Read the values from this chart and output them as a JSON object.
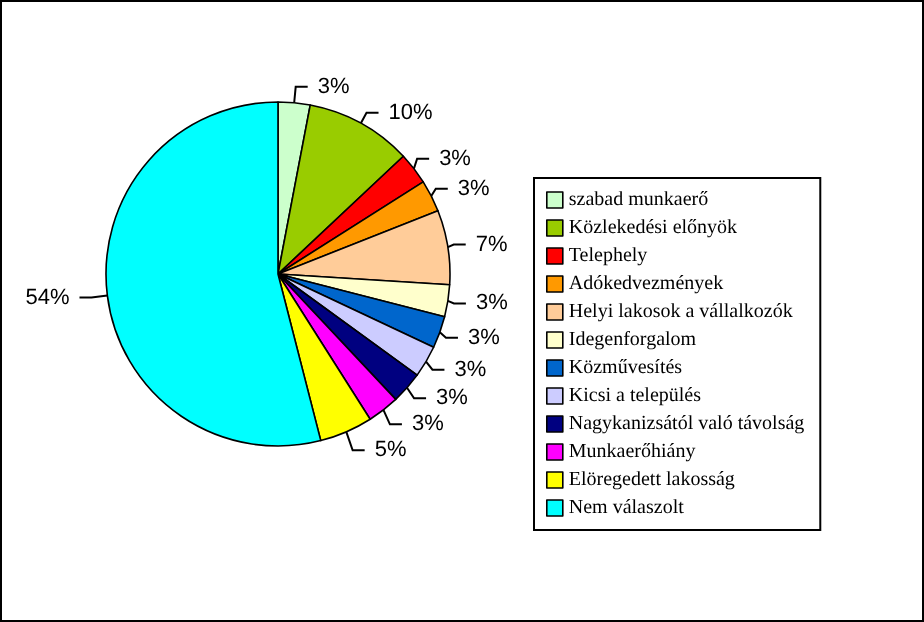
{
  "chart_data": {
    "type": "pie",
    "categories": [
      "szabad munkaerő",
      "Közlekedési előnyök",
      "Telephely",
      "Adókedvezmények",
      "Helyi lakosok a vállalkozók",
      "Idegenforgalom",
      "Közművesítés",
      "Kicsi a település",
      "Nagykanizsától való távolság",
      "Munkaerőhiány",
      "Elöregedett lakosság",
      "Nem válaszolt"
    ],
    "values": [
      3,
      10,
      3,
      3,
      7,
      3,
      3,
      3,
      3,
      3,
      5,
      54
    ],
    "colors": [
      "#ccffcc",
      "#99cc00",
      "#ff0000",
      "#ff9900",
      "#ffcc99",
      "#ffffcc",
      "#0066cc",
      "#ccccff",
      "#000080",
      "#ff00ff",
      "#ffff00",
      "#00ffff"
    ],
    "value_labels": [
      "3%",
      "10%",
      "3%",
      "3%",
      "7%",
      "3%",
      "3%",
      "3%",
      "3%",
      "3%",
      "5%",
      "54%"
    ],
    "legend": "right"
  }
}
